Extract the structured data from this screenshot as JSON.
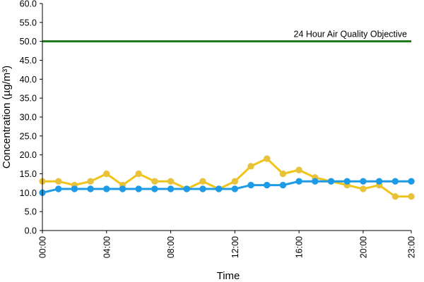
{
  "chart_data": {
    "type": "line",
    "title": "",
    "xlabel": "Time",
    "ylabel": "Concentration (µg/m³)",
    "ylim": [
      0,
      60
    ],
    "ytick_step": 5,
    "yticks": [
      "0.0",
      "5.0",
      "10.0",
      "15.0",
      "20.0",
      "25.0",
      "30.0",
      "35.0",
      "40.0",
      "45.0",
      "50.0",
      "55.0",
      "60.0"
    ],
    "x_categories": [
      "00:00",
      "01:00",
      "02:00",
      "03:00",
      "04:00",
      "05:00",
      "06:00",
      "07:00",
      "08:00",
      "09:00",
      "10:00",
      "11:00",
      "12:00",
      "13:00",
      "14:00",
      "15:00",
      "16:00",
      "17:00",
      "18:00",
      "19:00",
      "20:00",
      "21:00",
      "22:00",
      "23:00"
    ],
    "xticks_shown": [
      "00:00",
      "04:00",
      "08:00",
      "12:00",
      "16:00",
      "20:00",
      "23:00"
    ],
    "grid": false,
    "legend": "none",
    "series": [
      {
        "color": "#f0c419",
        "marker_color": "#e8c23a",
        "values": [
          13,
          13,
          12,
          13,
          15,
          12,
          15,
          13,
          13,
          11,
          13,
          11,
          13,
          17,
          19,
          15,
          16,
          14,
          13,
          12,
          11,
          12,
          9,
          9
        ]
      },
      {
        "color": "#1e9be6",
        "marker_color": "#1e9be6",
        "values": [
          10,
          11,
          11,
          11,
          11,
          11,
          11,
          11,
          11,
          11,
          11,
          11,
          11,
          12,
          12,
          12,
          13,
          13,
          13,
          13,
          13,
          13,
          13,
          13
        ]
      }
    ],
    "reference_line": {
      "value": 50,
      "label": "24 Hour Air Quality Objective",
      "color": "#1a7a1a"
    }
  }
}
